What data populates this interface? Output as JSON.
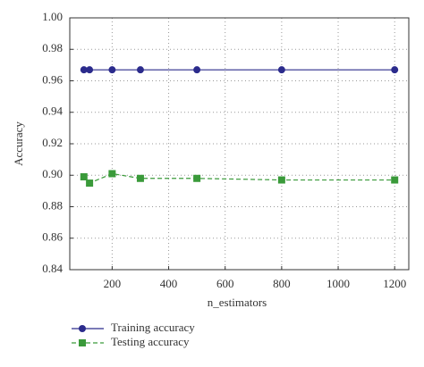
{
  "chart_data": {
    "type": "line",
    "x": [
      100,
      120,
      200,
      300,
      500,
      800,
      1200
    ],
    "series": [
      {
        "name": "Training accuracy",
        "color": "#2b2b8c",
        "marker": "circle",
        "linestyle": "solid",
        "values": [
          0.967,
          0.967,
          0.967,
          0.967,
          0.967,
          0.967,
          0.967
        ]
      },
      {
        "name": "Testing accuracy",
        "color": "#3a9a3a",
        "marker": "square",
        "linestyle": "dashed",
        "values": [
          0.899,
          0.895,
          0.901,
          0.898,
          0.898,
          0.897,
          0.897
        ]
      }
    ],
    "x_label": "n_estimators",
    "y_label": "Accuracy",
    "xlim": [
      50,
      1250
    ],
    "xticks": [
      200,
      400,
      600,
      800,
      1000,
      1200
    ],
    "ylim": [
      0.84,
      1.0
    ],
    "yticks": [
      0.84,
      0.86,
      0.88,
      {
        "value": 0.9,
        "label": "0.90"
      },
      0.92,
      0.94,
      0.96,
      0.98,
      {
        "value": 1.0,
        "label": "1.00"
      }
    ],
    "grid": true,
    "legend": "bottom"
  }
}
